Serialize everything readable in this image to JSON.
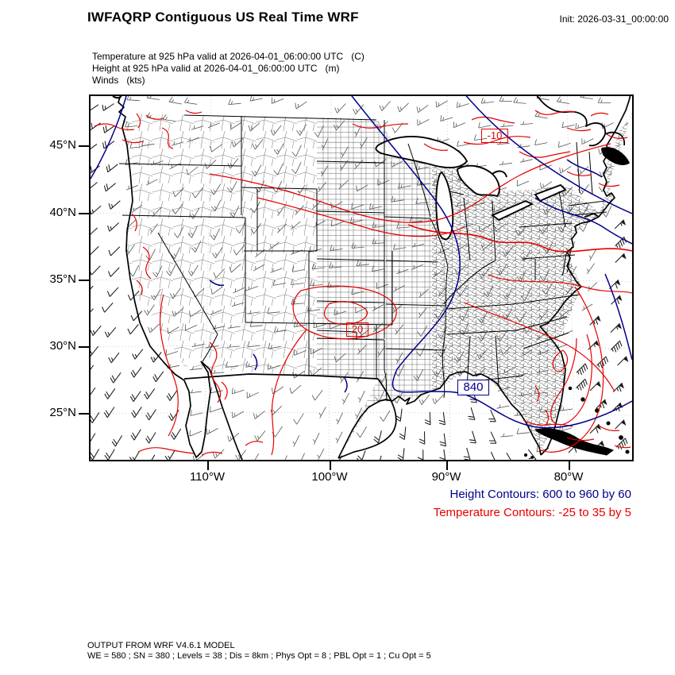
{
  "header": {
    "title": "IWFAQRP Contiguous US Real Time WRF",
    "init_label": "Init: 2026-03-31_00:00:00"
  },
  "fields": {
    "temperature": "Temperature at 925 hPa valid at 2026-04-01_06:00:00 UTC   (C)",
    "height": "Height at 925 hPa valid at 2026-04-01_06:00:00 UTC   (m)",
    "winds": "Winds   (kts)"
  },
  "map": {
    "lat_ticks": [
      "45°N",
      "40°N",
      "35°N",
      "30°N",
      "25°N"
    ],
    "lon_ticks": [
      "110°W",
      "100°W",
      "90°W",
      "80°W"
    ],
    "contour_labels": {
      "height_840": "840",
      "temp_minus10": "-10",
      "temp_20": "20"
    },
    "colors": {
      "height_contour": "#00008b",
      "temperature_contour": "#e60000",
      "coastline": "#000000",
      "county_line": "#666666"
    },
    "wind_regions": [
      {
        "name": "pacific",
        "from_dir": 225,
        "speed_kts": 15
      },
      {
        "name": "atlantic",
        "from_dir": 45,
        "speed_kts": 55
      },
      {
        "name": "gulf",
        "from_dir": 140,
        "speed_kts": 20
      },
      {
        "name": "canada",
        "from_dir": 250,
        "speed_kts": 15
      },
      {
        "name": "land",
        "from_dir": 235,
        "speed_kts": 10
      }
    ]
  },
  "legend": {
    "height": "Height Contours: 600 to 960 by 60",
    "temperature": "Temperature Contours: -25 to 35 by 5"
  },
  "footer": {
    "line1": "OUTPUT FROM WRF V4.6.1 MODEL",
    "line2": "WE = 580 ; SN = 380 ; Levels = 38 ; Dis = 8km ; Phys Opt = 8 ; PBL Opt = 1 ; Cu Opt = 5"
  }
}
